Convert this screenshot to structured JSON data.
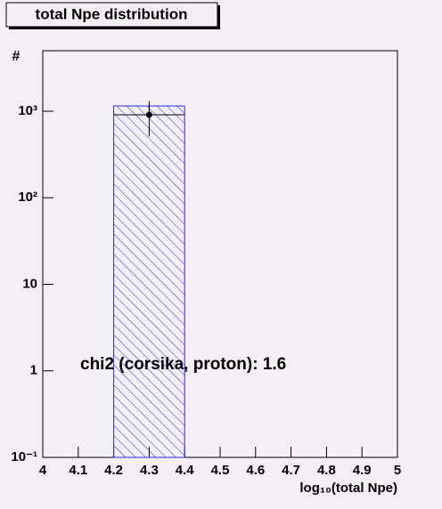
{
  "chart_data": {
    "type": "histogram",
    "title": "total Npe distribution",
    "x_label": "log₁₀(total Npe)",
    "y_label": "#",
    "annotation": "chi2 (corsika, proton): 1.6",
    "xlim": [
      4,
      5
    ],
    "xticks": [
      4,
      4.1,
      4.2,
      4.3,
      4.4,
      4.5,
      4.6,
      4.7,
      4.8,
      4.9,
      5
    ],
    "ylim": [
      0.1,
      5000
    ],
    "log_y": true,
    "yticks": [
      {
        "value": 0.1,
        "label": "10⁻¹"
      },
      1,
      10,
      {
        "value": 100,
        "label": "10²"
      },
      {
        "value": 1000,
        "label": "10³"
      }
    ],
    "bins": [
      4.2,
      4.4
    ],
    "series": [
      {
        "color": "#2a2ad0",
        "style": "hatched",
        "values": [
          1150
        ]
      },
      {
        "color": "#000000",
        "style": "points",
        "values": [
          910
        ],
        "errors": [
          400
        ]
      }
    ]
  }
}
